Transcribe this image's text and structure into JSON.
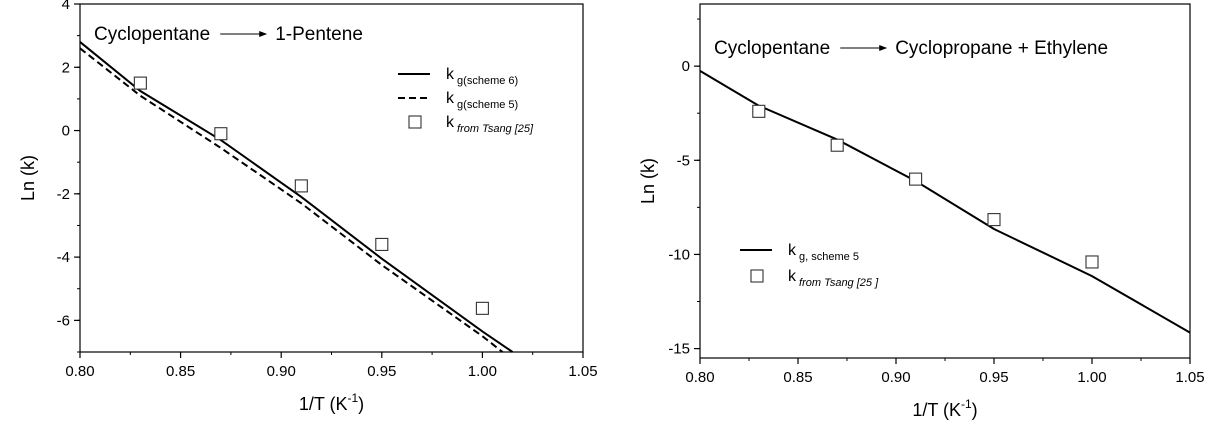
{
  "chart_data": [
    {
      "type": "line",
      "title": "Cyclopentane → 1-Pentene",
      "title_parts": [
        "Cyclopentane",
        "1-Pentene"
      ],
      "xlabel": "1/T (K",
      "xlabel_sup": "-1",
      "xlabel_end": ")",
      "ylabel": "Ln (k)",
      "xlim": [
        0.8,
        1.05
      ],
      "ylim": [
        -7,
        4
      ],
      "xticks": [
        "0.80",
        "0.85",
        "0.90",
        "0.95",
        "1.00",
        "1.05"
      ],
      "yticks": [
        "-6",
        "-4",
        "-2",
        "0",
        "2",
        "4"
      ],
      "legend_position": "top-right",
      "series": [
        {
          "name": "k",
          "name_sub": "g(scheme 6)",
          "style": "solid",
          "x": [
            0.8,
            0.83,
            0.87,
            0.91,
            0.95,
            1.0,
            1.015
          ],
          "y": [
            2.8,
            1.25,
            -0.3,
            -2.1,
            -4.05,
            -6.35,
            -7.0
          ]
        },
        {
          "name": "k",
          "name_sub": "g(scheme 5)",
          "style": "dashed",
          "x": [
            0.8,
            0.83,
            0.87,
            0.91,
            0.95,
            1.0,
            1.01
          ],
          "y": [
            2.6,
            1.1,
            -0.55,
            -2.3,
            -4.25,
            -6.5,
            -7.0
          ]
        },
        {
          "name": "k",
          "name_sub": "from Tsang [25]",
          "style": "marker",
          "x": [
            0.83,
            0.87,
            0.91,
            0.95,
            1.0
          ],
          "y": [
            1.5,
            -0.1,
            -1.75,
            -3.6,
            -5.62
          ]
        }
      ]
    },
    {
      "type": "line",
      "title": "Cyclopentane → Cyclopropane + Ethylene",
      "title_parts": [
        "Cyclopentane",
        "Cyclopropane +  Ethylene"
      ],
      "xlabel": "1/T (K",
      "xlabel_sup": "-1",
      "xlabel_end": ")",
      "ylabel": "Ln (k)",
      "xlim": [
        0.8,
        1.05
      ],
      "ylim": [
        -15.5,
        3.3
      ],
      "xticks": [
        "0.80",
        "0.85",
        "0.90",
        "0.95",
        "1.00",
        "1.05"
      ],
      "yticks": [
        "-15",
        "-10",
        "-5",
        "0"
      ],
      "legend_position": "center-left",
      "series": [
        {
          "name": "k",
          "name_sub": "g, scheme 5",
          "style": "solid",
          "x": [
            0.8,
            0.83,
            0.87,
            0.91,
            0.95,
            1.0,
            1.05
          ],
          "y": [
            -0.25,
            -2.1,
            -3.9,
            -6.1,
            -8.65,
            -11.15,
            -14.15
          ]
        },
        {
          "name": "k",
          "name_sub": "from Tsang [25 ]",
          "style": "marker",
          "x": [
            0.83,
            0.87,
            0.91,
            0.95,
            1.0
          ],
          "y": [
            -2.4,
            -4.2,
            -6.0,
            -8.15,
            -10.4
          ]
        }
      ]
    }
  ]
}
